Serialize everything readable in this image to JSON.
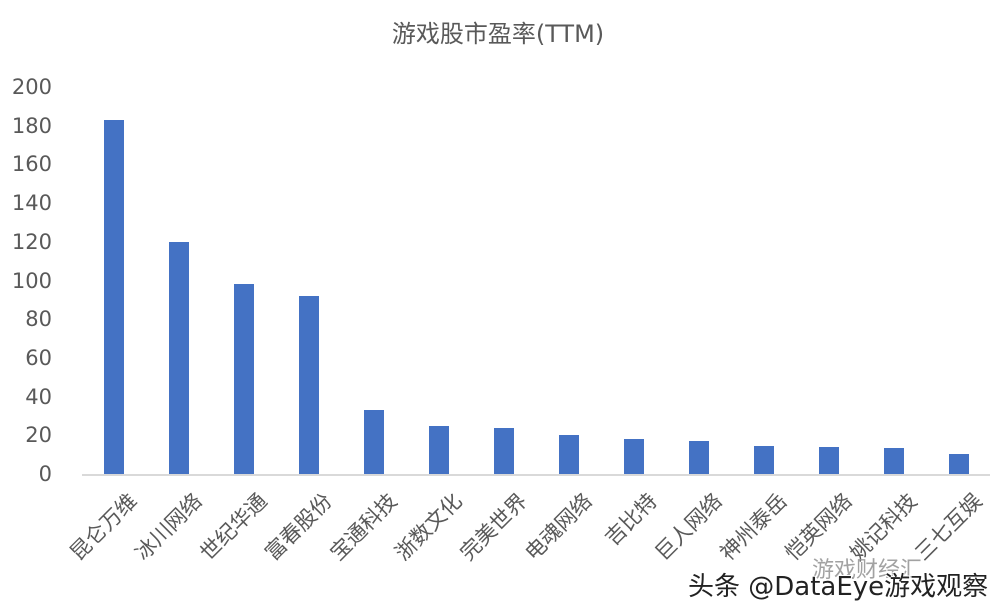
{
  "chart_data": {
    "type": "bar",
    "title": "游戏股市盈率(TTM)",
    "xlabel": "",
    "ylabel": "",
    "ylim": [
      0,
      200
    ],
    "yticks": [
      0,
      20,
      40,
      60,
      80,
      100,
      120,
      140,
      160,
      180,
      200
    ],
    "grid": false,
    "legend": null,
    "bar_color": "#4472c4",
    "categories": [
      "昆仑万维",
      "冰川网络",
      "世纪华通",
      "富春股份",
      "宝通科技",
      "浙数文化",
      "完美世界",
      "电魂网络",
      "吉比特",
      "巨人网络",
      "神州泰岳",
      "恺英网络",
      "姚记科技",
      "三七互娱"
    ],
    "values": [
      183,
      120,
      98,
      92,
      33,
      25,
      24,
      20,
      18,
      17,
      14.5,
      14,
      13.5,
      10.5
    ]
  },
  "watermark": {
    "main": "头条 @DataEye游戏观察",
    "secondary": "游戏财经汇"
  }
}
